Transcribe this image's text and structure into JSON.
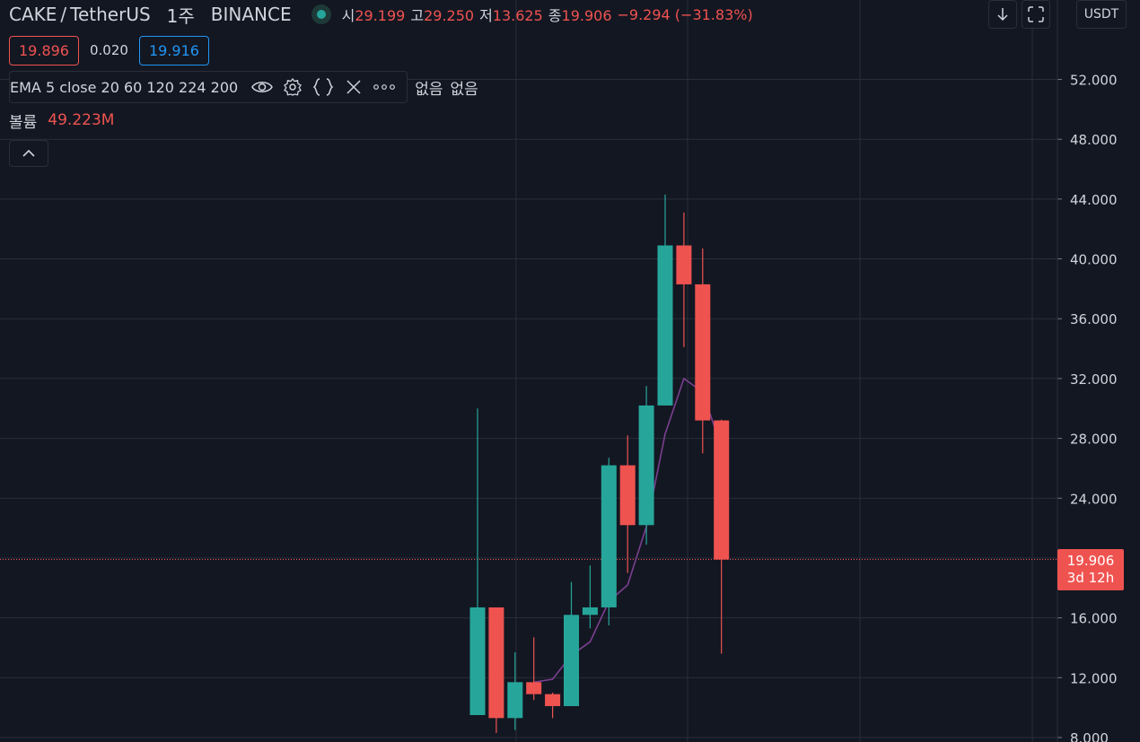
{
  "header": {
    "symbol": "CAKE",
    "separator": "/",
    "quote": "TetherUS",
    "interval": "1주",
    "exchange": "BINANCE",
    "ohlc": {
      "open_label": "시",
      "open": "29.199",
      "high_label": "고",
      "high": "29.250",
      "low_label": "저",
      "low": "13.625",
      "close_label": "종",
      "close": "19.906",
      "change": "−9.294 (−31.83%)"
    }
  },
  "quotes": {
    "bid": "19.896",
    "spread": "0.020",
    "ask": "19.916"
  },
  "indicator": {
    "title": "EMA 5 close 20 60 120 224 200",
    "icons": [
      "eye-icon",
      "gear-icon",
      "braces-icon",
      "close-icon",
      "more-icon"
    ],
    "source1": "없음",
    "source2": "없음"
  },
  "volume": {
    "label": "볼륨",
    "value": "49.223M"
  },
  "toolbar": {
    "currency": "USDT"
  },
  "last_price": {
    "value": "19.906",
    "countdown": "3d 12h"
  },
  "colors": {
    "up": "#26a69a",
    "down": "#ef5350",
    "ema": "#7b3f8f",
    "grid": "#2a2e39",
    "bg": "#131722"
  },
  "chart_data": {
    "type": "candlestick",
    "y_ticks": [
      "8.000",
      "12.000",
      "16.000",
      "20.000",
      "24.000",
      "28.000",
      "32.000",
      "36.000",
      "40.000",
      "44.000",
      "48.000",
      "52.000"
    ],
    "ylim": [
      8,
      56
    ],
    "candles": [
      {
        "o": 9.5,
        "h": 30.0,
        "l": 9.5,
        "c": 16.7
      },
      {
        "o": 16.7,
        "h": 16.7,
        "l": 8.3,
        "c": 9.3
      },
      {
        "o": 9.3,
        "h": 13.7,
        "l": 8.5,
        "c": 11.7
      },
      {
        "o": 11.7,
        "h": 14.7,
        "l": 10.5,
        "c": 10.9
      },
      {
        "o": 10.9,
        "h": 11.0,
        "l": 9.3,
        "c": 10.1
      },
      {
        "o": 10.1,
        "h": 18.4,
        "l": 10.1,
        "c": 16.2
      },
      {
        "o": 16.2,
        "h": 19.5,
        "l": 15.3,
        "c": 16.7
      },
      {
        "o": 16.7,
        "h": 26.7,
        "l": 15.5,
        "c": 26.2
      },
      {
        "o": 26.2,
        "h": 28.2,
        "l": 19.0,
        "c": 22.2
      },
      {
        "o": 22.2,
        "h": 31.5,
        "l": 20.9,
        "c": 30.2
      },
      {
        "o": 30.2,
        "h": 44.3,
        "l": 30.2,
        "c": 40.9
      },
      {
        "o": 40.9,
        "h": 43.1,
        "l": 34.1,
        "c": 38.3
      },
      {
        "o": 38.3,
        "h": 40.7,
        "l": 27.0,
        "c": 29.2
      },
      {
        "o": 29.2,
        "h": 29.25,
        "l": 13.6,
        "c": 19.9
      }
    ],
    "ema": [
      null,
      null,
      null,
      11.7,
      11.9,
      13.5,
      14.4,
      17.1,
      18.2,
      22.1,
      28.3,
      32.0,
      31.1,
      27.4
    ],
    "last": 19.906
  }
}
